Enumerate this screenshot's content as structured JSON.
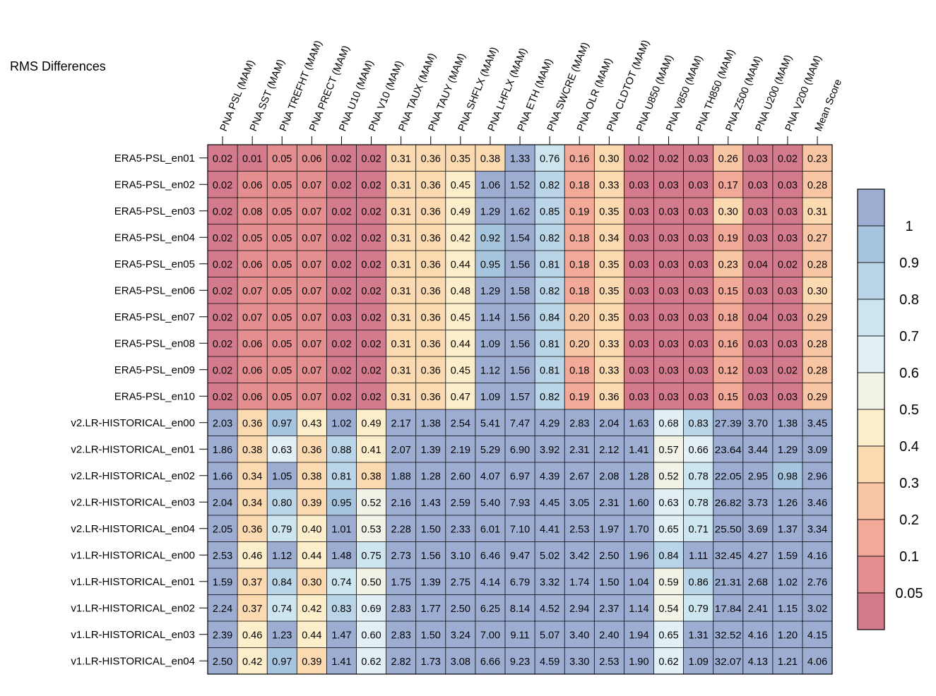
{
  "chart_data": {
    "type": "heatmap",
    "title": "RMS Differences",
    "columns": [
      "PNA PSL (MAM)",
      "PNA SST (MAM)",
      "PNA TREFHT (MAM)",
      "PNA PRECT (MAM)",
      "PNA U10 (MAM)",
      "PNA V10 (MAM)",
      "PNA TAUX (MAM)",
      "PNA TAUY (MAM)",
      "PNA SHFLX (MAM)",
      "PNA LHFLX (MAM)",
      "PNA ETH (MAM)",
      "PNA SWCRE (MAM)",
      "PNA OLR (MAM)",
      "PNA CLDTOT (MAM)",
      "PNA U850 (MAM)",
      "PNA V850 (MAM)",
      "PNA TH850 (MAM)",
      "PNA Z500 (MAM)",
      "PNA U200 (MAM)",
      "PNA V200 (MAM)",
      "Mean Score"
    ],
    "rows": [
      "ERA5-PSL_en01",
      "ERA5-PSL_en02",
      "ERA5-PSL_en03",
      "ERA5-PSL_en04",
      "ERA5-PSL_en05",
      "ERA5-PSL_en06",
      "ERA5-PSL_en07",
      "ERA5-PSL_en08",
      "ERA5-PSL_en09",
      "ERA5-PSL_en10",
      "v2.LR-HISTORICAL_en00",
      "v2.LR-HISTORICAL_en01",
      "v2.LR-HISTORICAL_en02",
      "v2.LR-HISTORICAL_en03",
      "v2.LR-HISTORICAL_en04",
      "v1.LR-HISTORICAL_en00",
      "v1.LR-HISTORICAL_en01",
      "v1.LR-HISTORICAL_en02",
      "v1.LR-HISTORICAL_en03",
      "v1.LR-HISTORICAL_en04"
    ],
    "values": [
      [
        "0.02",
        "0.01",
        "0.05",
        "0.06",
        "0.02",
        "0.02",
        "0.31",
        "0.36",
        "0.35",
        "0.38",
        "1.33",
        "0.76",
        "0.16",
        "0.30",
        "0.02",
        "0.02",
        "0.03",
        "0.26",
        "0.03",
        "0.02",
        "0.23"
      ],
      [
        "0.02",
        "0.06",
        "0.05",
        "0.07",
        "0.02",
        "0.02",
        "0.31",
        "0.36",
        "0.45",
        "1.06",
        "1.52",
        "0.82",
        "0.18",
        "0.33",
        "0.03",
        "0.03",
        "0.03",
        "0.17",
        "0.03",
        "0.03",
        "0.28"
      ],
      [
        "0.02",
        "0.08",
        "0.05",
        "0.07",
        "0.02",
        "0.02",
        "0.31",
        "0.36",
        "0.49",
        "1.29",
        "1.62",
        "0.85",
        "0.19",
        "0.35",
        "0.03",
        "0.03",
        "0.03",
        "0.30",
        "0.03",
        "0.03",
        "0.31"
      ],
      [
        "0.02",
        "0.05",
        "0.05",
        "0.07",
        "0.02",
        "0.02",
        "0.31",
        "0.36",
        "0.42",
        "0.92",
        "1.54",
        "0.82",
        "0.18",
        "0.34",
        "0.03",
        "0.03",
        "0.03",
        "0.19",
        "0.03",
        "0.03",
        "0.27"
      ],
      [
        "0.02",
        "0.06",
        "0.05",
        "0.07",
        "0.02",
        "0.02",
        "0.31",
        "0.36",
        "0.44",
        "0.95",
        "1.56",
        "0.81",
        "0.18",
        "0.35",
        "0.03",
        "0.03",
        "0.03",
        "0.23",
        "0.04",
        "0.02",
        "0.28"
      ],
      [
        "0.02",
        "0.07",
        "0.05",
        "0.07",
        "0.02",
        "0.02",
        "0.31",
        "0.36",
        "0.48",
        "1.29",
        "1.58",
        "0.82",
        "0.18",
        "0.35",
        "0.03",
        "0.03",
        "0.03",
        "0.15",
        "0.03",
        "0.03",
        "0.30"
      ],
      [
        "0.02",
        "0.07",
        "0.05",
        "0.07",
        "0.03",
        "0.02",
        "0.31",
        "0.36",
        "0.45",
        "1.14",
        "1.56",
        "0.84",
        "0.20",
        "0.35",
        "0.03",
        "0.03",
        "0.03",
        "0.18",
        "0.04",
        "0.03",
        "0.29"
      ],
      [
        "0.02",
        "0.06",
        "0.05",
        "0.07",
        "0.02",
        "0.02",
        "0.31",
        "0.36",
        "0.44",
        "1.09",
        "1.56",
        "0.81",
        "0.20",
        "0.33",
        "0.03",
        "0.03",
        "0.03",
        "0.16",
        "0.03",
        "0.03",
        "0.28"
      ],
      [
        "0.02",
        "0.06",
        "0.05",
        "0.07",
        "0.02",
        "0.02",
        "0.31",
        "0.36",
        "0.45",
        "1.12",
        "1.56",
        "0.81",
        "0.18",
        "0.33",
        "0.03",
        "0.03",
        "0.03",
        "0.12",
        "0.03",
        "0.02",
        "0.28"
      ],
      [
        "0.02",
        "0.06",
        "0.05",
        "0.07",
        "0.02",
        "0.02",
        "0.31",
        "0.36",
        "0.47",
        "1.09",
        "1.57",
        "0.82",
        "0.19",
        "0.36",
        "0.03",
        "0.03",
        "0.03",
        "0.15",
        "0.03",
        "0.03",
        "0.29"
      ],
      [
        "2.03",
        "0.36",
        "0.97",
        "0.43",
        "1.02",
        "0.49",
        "2.17",
        "1.38",
        "2.54",
        "5.41",
        "7.47",
        "4.29",
        "2.83",
        "2.04",
        "1.63",
        "0.68",
        "0.83",
        "27.39",
        "3.70",
        "1.38",
        "3.45"
      ],
      [
        "1.86",
        "0.38",
        "0.63",
        "0.36",
        "0.88",
        "0.41",
        "2.07",
        "1.39",
        "2.19",
        "5.29",
        "6.90",
        "3.92",
        "2.31",
        "2.12",
        "1.41",
        "0.57",
        "0.66",
        "23.64",
        "3.44",
        "1.29",
        "3.09"
      ],
      [
        "1.66",
        "0.34",
        "1.05",
        "0.38",
        "0.81",
        "0.38",
        "1.88",
        "1.28",
        "2.60",
        "4.07",
        "6.97",
        "4.39",
        "2.67",
        "2.08",
        "1.28",
        "0.52",
        "0.78",
        "22.05",
        "2.95",
        "0.98",
        "2.96"
      ],
      [
        "2.04",
        "0.34",
        "0.80",
        "0.39",
        "0.95",
        "0.52",
        "2.16",
        "1.43",
        "2.59",
        "5.40",
        "7.93",
        "4.45",
        "3.05",
        "2.31",
        "1.60",
        "0.63",
        "0.78",
        "26.82",
        "3.73",
        "1.26",
        "3.46"
      ],
      [
        "2.05",
        "0.36",
        "0.79",
        "0.40",
        "1.01",
        "0.53",
        "2.28",
        "1.50",
        "2.33",
        "6.01",
        "7.10",
        "4.41",
        "2.53",
        "1.97",
        "1.70",
        "0.65",
        "0.71",
        "25.50",
        "3.69",
        "1.37",
        "3.34"
      ],
      [
        "2.53",
        "0.46",
        "1.12",
        "0.44",
        "1.48",
        "0.75",
        "2.73",
        "1.56",
        "3.10",
        "6.46",
        "9.47",
        "5.02",
        "3.42",
        "2.50",
        "1.96",
        "0.84",
        "1.11",
        "32.45",
        "4.27",
        "1.59",
        "4.16"
      ],
      [
        "1.59",
        "0.37",
        "0.84",
        "0.30",
        "0.74",
        "0.50",
        "1.75",
        "1.39",
        "2.75",
        "4.14",
        "6.79",
        "3.32",
        "1.74",
        "1.50",
        "1.04",
        "0.59",
        "0.86",
        "21.31",
        "2.68",
        "1.02",
        "2.76"
      ],
      [
        "2.24",
        "0.37",
        "0.74",
        "0.42",
        "0.83",
        "0.69",
        "2.83",
        "1.77",
        "2.50",
        "6.25",
        "8.14",
        "4.52",
        "2.94",
        "2.37",
        "1.14",
        "0.54",
        "0.79",
        "17.84",
        "2.41",
        "1.15",
        "3.02"
      ],
      [
        "2.39",
        "0.46",
        "1.23",
        "0.44",
        "1.47",
        "0.60",
        "2.83",
        "1.50",
        "3.24",
        "7.00",
        "9.11",
        "5.07",
        "3.40",
        "2.40",
        "1.94",
        "0.65",
        "1.31",
        "32.52",
        "4.16",
        "1.20",
        "4.15"
      ],
      [
        "2.50",
        "0.42",
        "0.97",
        "0.39",
        "1.41",
        "0.62",
        "2.82",
        "1.73",
        "3.08",
        "6.66",
        "9.23",
        "4.59",
        "3.30",
        "2.53",
        "1.90",
        "0.62",
        "1.09",
        "32.07",
        "4.13",
        "1.21",
        "4.06"
      ]
    ],
    "colorbar": {
      "tick_labels": [
        "1",
        "0.9",
        "0.8",
        "0.7",
        "0.6",
        "0.5",
        "0.4",
        "0.3",
        "0.2",
        "0.1",
        "0.05"
      ],
      "bins": [
        {
          "min": 1.0,
          "max": 999,
          "color": "#9dadd2"
        },
        {
          "min": 0.9,
          "max": 1.0,
          "color": "#a7c4de"
        },
        {
          "min": 0.8,
          "max": 0.9,
          "color": "#bad5e7"
        },
        {
          "min": 0.7,
          "max": 0.8,
          "color": "#cde5ef"
        },
        {
          "min": 0.6,
          "max": 0.7,
          "color": "#e2f0f5"
        },
        {
          "min": 0.5,
          "max": 0.6,
          "color": "#f3f2e7"
        },
        {
          "min": 0.4,
          "max": 0.5,
          "color": "#fdeecb"
        },
        {
          "min": 0.3,
          "max": 0.4,
          "color": "#fbd9b1"
        },
        {
          "min": 0.2,
          "max": 0.3,
          "color": "#f8c6a4"
        },
        {
          "min": 0.1,
          "max": 0.2,
          "color": "#f3a998"
        },
        {
          "min": 0.05,
          "max": 0.1,
          "color": "#e58e8f"
        },
        {
          "min": 0,
          "max": 0.05,
          "color": "#d37b8c"
        }
      ]
    }
  }
}
